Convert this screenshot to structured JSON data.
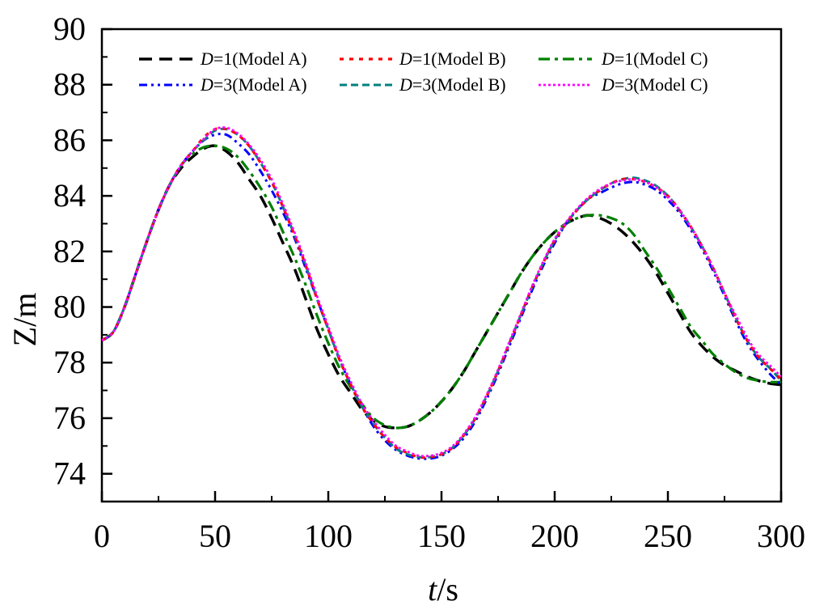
{
  "chart_data": {
    "type": "line",
    "title": "",
    "xlabel_italic": "t",
    "xlabel_unit": "/s",
    "ylabel": "Z/m",
    "xlim": [
      0,
      300
    ],
    "ylim": [
      73,
      90
    ],
    "x_ticks": [
      0,
      50,
      100,
      150,
      200,
      250,
      300
    ],
    "x_tick_labels": [
      "0",
      "50",
      "100",
      "150",
      "200",
      "250",
      "300"
    ],
    "y_ticks": [
      74,
      76,
      78,
      80,
      82,
      84,
      86,
      88,
      90
    ],
    "y_tick_labels": [
      "74",
      "76",
      "78",
      "80",
      "82",
      "84",
      "86",
      "88",
      "90"
    ],
    "x_minor_step": 25,
    "y_minor_step": 1,
    "grid": false,
    "legend_position": "top",
    "series": [
      {
        "name": "D=1(Model A)",
        "legend_italic": "D",
        "legend_rest": "=1(Model A)",
        "color": "#000000",
        "style": "dash",
        "x": [
          0,
          5,
          10,
          15,
          20,
          25,
          30,
          35,
          40,
          45,
          50,
          55,
          60,
          65,
          70,
          75,
          80,
          85,
          90,
          95,
          100,
          105,
          110,
          115,
          120,
          125,
          130,
          135,
          140,
          145,
          150,
          155,
          160,
          165,
          170,
          175,
          180,
          185,
          190,
          195,
          200,
          205,
          210,
          215,
          220,
          225,
          230,
          235,
          240,
          245,
          250,
          255,
          260,
          265,
          270,
          275,
          280,
          285,
          290,
          295,
          300
        ],
        "y": [
          78.8,
          79.1,
          80.0,
          81.2,
          82.4,
          83.5,
          84.4,
          85.0,
          85.4,
          85.7,
          85.8,
          85.6,
          85.2,
          84.6,
          84.0,
          83.2,
          82.3,
          81.4,
          80.3,
          79.2,
          78.3,
          77.5,
          76.9,
          76.3,
          75.9,
          75.7,
          75.65,
          75.7,
          75.9,
          76.2,
          76.6,
          77.1,
          77.7,
          78.4,
          79.1,
          79.8,
          80.5,
          81.2,
          81.8,
          82.3,
          82.7,
          83.0,
          83.2,
          83.3,
          83.2,
          83.0,
          82.7,
          82.3,
          81.8,
          81.2,
          80.5,
          79.8,
          79.1,
          78.6,
          78.2,
          77.9,
          77.7,
          77.5,
          77.35,
          77.25,
          77.2
        ]
      },
      {
        "name": "D=1(Model B)",
        "legend_italic": "D",
        "legend_rest": "=1(Model B)",
        "color": "#ff0000",
        "style": "dot",
        "x": [
          0,
          5,
          10,
          15,
          20,
          25,
          30,
          35,
          40,
          45,
          50,
          55,
          60,
          65,
          70,
          75,
          80,
          85,
          90,
          95,
          100,
          105,
          110,
          115,
          120,
          125,
          130,
          135,
          140,
          145,
          150,
          155,
          160,
          165,
          170,
          175,
          180,
          185,
          190,
          195,
          200,
          205,
          210,
          215,
          220,
          225,
          230,
          235,
          240,
          245,
          250,
          255,
          260,
          265,
          270,
          275,
          280,
          285,
          290,
          295,
          300
        ],
        "y": [
          78.8,
          79.1,
          80.0,
          81.2,
          82.4,
          83.5,
          84.4,
          85.1,
          85.6,
          86.1,
          86.4,
          86.4,
          86.2,
          85.8,
          85.2,
          84.5,
          83.6,
          82.6,
          81.5,
          80.3,
          79.2,
          78.1,
          77.2,
          76.4,
          75.8,
          75.3,
          74.95,
          74.75,
          74.6,
          74.6,
          74.7,
          74.95,
          75.4,
          76.0,
          76.8,
          77.7,
          78.7,
          79.7,
          80.7,
          81.6,
          82.4,
          83.0,
          83.5,
          83.9,
          84.2,
          84.45,
          84.6,
          84.6,
          84.5,
          84.3,
          84.0,
          83.5,
          82.9,
          82.2,
          81.4,
          80.5,
          79.6,
          78.8,
          78.2,
          77.8,
          77.4
        ]
      },
      {
        "name": "D=1(Model C)",
        "legend_italic": "D",
        "legend_rest": "=1(Model C)",
        "color": "#008000",
        "style": "dashdot",
        "x": [
          0,
          5,
          10,
          15,
          20,
          25,
          30,
          35,
          40,
          45,
          50,
          55,
          60,
          65,
          70,
          75,
          80,
          85,
          90,
          95,
          100,
          105,
          110,
          115,
          120,
          125,
          130,
          135,
          140,
          145,
          150,
          155,
          160,
          165,
          170,
          175,
          180,
          185,
          190,
          195,
          200,
          205,
          210,
          215,
          220,
          225,
          230,
          235,
          240,
          245,
          250,
          255,
          260,
          265,
          270,
          275,
          280,
          285,
          290,
          295,
          300
        ],
        "y": [
          78.8,
          79.1,
          80.0,
          81.2,
          82.4,
          83.5,
          84.4,
          85.1,
          85.5,
          85.75,
          85.8,
          85.7,
          85.4,
          84.9,
          84.3,
          83.6,
          82.7,
          81.8,
          80.8,
          79.7,
          78.7,
          77.8,
          77.1,
          76.5,
          76.0,
          75.75,
          75.65,
          75.7,
          75.9,
          76.2,
          76.6,
          77.1,
          77.7,
          78.4,
          79.1,
          79.8,
          80.5,
          81.2,
          81.8,
          82.3,
          82.7,
          83.0,
          83.2,
          83.3,
          83.3,
          83.2,
          83.0,
          82.6,
          82.0,
          81.4,
          80.7,
          80.0,
          79.3,
          78.8,
          78.3,
          77.95,
          77.65,
          77.45,
          77.35,
          77.3,
          77.3
        ]
      },
      {
        "name": "D=3(Model A)",
        "legend_italic": "D",
        "legend_rest": "=3(Model A)",
        "color": "#0000ff",
        "style": "dashdotdot",
        "x": [
          0,
          5,
          10,
          15,
          20,
          25,
          30,
          35,
          40,
          45,
          50,
          55,
          60,
          65,
          70,
          75,
          80,
          85,
          90,
          95,
          100,
          105,
          110,
          115,
          120,
          125,
          130,
          135,
          140,
          145,
          150,
          155,
          160,
          165,
          170,
          175,
          180,
          185,
          190,
          195,
          200,
          205,
          210,
          215,
          220,
          225,
          230,
          235,
          240,
          245,
          250,
          255,
          260,
          265,
          270,
          275,
          280,
          285,
          290,
          295,
          300
        ],
        "y": [
          78.8,
          79.1,
          80.0,
          81.2,
          82.4,
          83.5,
          84.4,
          85.1,
          85.6,
          86.0,
          86.2,
          86.2,
          85.9,
          85.5,
          84.9,
          84.2,
          83.4,
          82.5,
          81.4,
          80.3,
          79.2,
          78.1,
          77.2,
          76.4,
          75.7,
          75.2,
          74.85,
          74.65,
          74.55,
          74.55,
          74.65,
          74.9,
          75.3,
          75.9,
          76.7,
          77.6,
          78.6,
          79.6,
          80.6,
          81.5,
          82.3,
          83.0,
          83.5,
          83.9,
          84.1,
          84.3,
          84.45,
          84.5,
          84.4,
          84.2,
          83.85,
          83.4,
          82.8,
          82.1,
          81.3,
          80.4,
          79.5,
          78.7,
          78.1,
          77.6,
          77.2
        ]
      },
      {
        "name": "D=3(Model B)",
        "legend_italic": "D",
        "legend_rest": "=3(Model B)",
        "color": "#008080",
        "style": "dash-short",
        "x": [
          0,
          5,
          10,
          15,
          20,
          25,
          30,
          35,
          40,
          45,
          50,
          55,
          60,
          65,
          70,
          75,
          80,
          85,
          90,
          95,
          100,
          105,
          110,
          115,
          120,
          125,
          130,
          135,
          140,
          145,
          150,
          155,
          160,
          165,
          170,
          175,
          180,
          185,
          190,
          195,
          200,
          205,
          210,
          215,
          220,
          225,
          230,
          235,
          240,
          245,
          250,
          255,
          260,
          265,
          270,
          275,
          280,
          285,
          290,
          295,
          300
        ],
        "y": [
          78.8,
          79.1,
          80.0,
          81.2,
          82.4,
          83.5,
          84.4,
          85.1,
          85.6,
          86.0,
          86.35,
          86.4,
          86.2,
          85.8,
          85.2,
          84.5,
          83.6,
          82.6,
          81.5,
          80.3,
          79.2,
          78.1,
          77.2,
          76.4,
          75.8,
          75.3,
          74.9,
          74.7,
          74.6,
          74.6,
          74.7,
          74.95,
          75.4,
          76.0,
          76.8,
          77.7,
          78.7,
          79.7,
          80.7,
          81.6,
          82.4,
          83.0,
          83.5,
          83.9,
          84.2,
          84.45,
          84.6,
          84.65,
          84.55,
          84.35,
          84.0,
          83.5,
          82.9,
          82.2,
          81.4,
          80.5,
          79.6,
          78.8,
          78.2,
          77.8,
          77.35
        ]
      },
      {
        "name": "D=3(Model C)",
        "legend_italic": "D",
        "legend_rest": "=3(Model C)",
        "color": "#ff00ff",
        "style": "dot-fine",
        "x": [
          0,
          5,
          10,
          15,
          20,
          25,
          30,
          35,
          40,
          45,
          50,
          55,
          60,
          65,
          70,
          75,
          80,
          85,
          90,
          95,
          100,
          105,
          110,
          115,
          120,
          125,
          130,
          135,
          140,
          145,
          150,
          155,
          160,
          165,
          170,
          175,
          180,
          185,
          190,
          195,
          200,
          205,
          210,
          215,
          220,
          225,
          230,
          235,
          240,
          245,
          250,
          255,
          260,
          265,
          270,
          275,
          280,
          285,
          290,
          295,
          300
        ],
        "y": [
          78.8,
          79.1,
          80.0,
          81.2,
          82.4,
          83.5,
          84.4,
          85.1,
          85.6,
          86.05,
          86.4,
          86.45,
          86.25,
          85.85,
          85.3,
          84.6,
          83.7,
          82.7,
          81.6,
          80.4,
          79.3,
          78.2,
          77.3,
          76.5,
          75.9,
          75.4,
          75.0,
          74.8,
          74.65,
          74.65,
          74.75,
          75.0,
          75.45,
          76.05,
          76.85,
          77.75,
          78.75,
          79.75,
          80.75,
          81.65,
          82.45,
          83.05,
          83.55,
          83.95,
          84.25,
          84.45,
          84.55,
          84.6,
          84.5,
          84.3,
          83.95,
          83.5,
          82.9,
          82.2,
          81.4,
          80.5,
          79.7,
          78.9,
          78.3,
          77.9,
          77.5
        ]
      }
    ]
  }
}
